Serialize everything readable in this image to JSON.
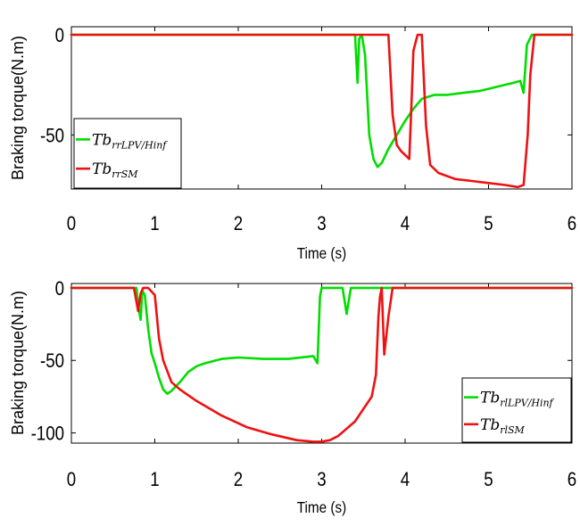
{
  "chart_data": [
    {
      "type": "line",
      "title": "",
      "xlabel": "Time (s)",
      "ylabel": "Braking torque(N.m)",
      "xlim": [
        0,
        6
      ],
      "ylim": [
        -77,
        4
      ],
      "xticks": [
        0,
        1,
        2,
        3,
        4,
        5,
        6
      ],
      "yticks": [
        0,
        -50
      ],
      "grid": false,
      "legend_position": "left",
      "series": [
        {
          "name": "Tb_rrLPV/Hinf",
          "name_main": "Tb",
          "name_sub": "rrLPV/Hinf",
          "color": "#00dd00",
          "x": [
            0,
            3.4,
            3.43,
            3.45,
            3.48,
            3.52,
            3.57,
            3.62,
            3.67,
            3.72,
            3.8,
            3.9,
            4.0,
            4.1,
            4.2,
            4.35,
            4.5,
            4.7,
            4.9,
            5.1,
            5.3,
            5.38,
            5.42,
            5.46,
            5.52,
            5.6,
            6
          ],
          "y": [
            0,
            0,
            -24,
            -2,
            0,
            -10,
            -50,
            -62,
            -66,
            -64,
            -57,
            -50,
            -43,
            -37,
            -32,
            -30,
            -30,
            -29,
            -28,
            -26,
            -24,
            -23,
            -29,
            -5,
            0,
            0,
            0
          ]
        },
        {
          "name": "Tb_rrSM",
          "name_main": "Tb",
          "name_sub": "rrSM",
          "color": "#ee1111",
          "x": [
            0,
            3.8,
            3.85,
            3.9,
            3.95,
            4.0,
            4.05,
            4.08,
            4.1,
            4.15,
            4.2,
            4.25,
            4.3,
            4.4,
            4.6,
            4.8,
            5.0,
            5.2,
            5.35,
            5.42,
            5.47,
            5.5,
            5.55,
            5.6,
            6
          ],
          "y": [
            0,
            0,
            -40,
            -55,
            -58,
            -60,
            -62,
            -30,
            -8,
            0,
            0,
            -45,
            -65,
            -69,
            -72,
            -73,
            -74,
            -75,
            -76,
            -75,
            -50,
            -20,
            0,
            0,
            0
          ]
        }
      ]
    },
    {
      "type": "line",
      "title": "",
      "xlabel": "Time (s)",
      "ylabel": "Braking torque(N.m)",
      "xlim": [
        0,
        6
      ],
      "ylim": [
        -107,
        3
      ],
      "xticks": [
        0,
        1,
        2,
        3,
        4,
        5,
        6
      ],
      "yticks": [
        0,
        -50,
        -100
      ],
      "grid": false,
      "legend_position": "right",
      "series": [
        {
          "name": "Tb_rlLPV/Hinf",
          "name_main": "Tb",
          "name_sub": "rlLPV/Hinf",
          "color": "#00dd00",
          "x": [
            0,
            0.78,
            0.8,
            0.83,
            0.85,
            0.88,
            0.92,
            0.96,
            1.0,
            1.05,
            1.1,
            1.15,
            1.2,
            1.3,
            1.4,
            1.5,
            1.6,
            1.8,
            2.0,
            2.3,
            2.6,
            2.9,
            2.95,
            2.98,
            3.0,
            3.05,
            3.25,
            3.3,
            3.35,
            3.4,
            6
          ],
          "y": [
            0,
            0,
            -12,
            -22,
            -2,
            -5,
            -28,
            -45,
            -52,
            -62,
            -70,
            -73,
            -71,
            -65,
            -58,
            -54,
            -52,
            -49,
            -48,
            -49,
            -49,
            -47,
            -52,
            -6,
            0,
            0,
            0,
            -18,
            0,
            0,
            0
          ]
        },
        {
          "name": "Tb_rlSM",
          "name_main": "Tb",
          "name_sub": "rlSM",
          "color": "#ee1111",
          "x": [
            0,
            0.75,
            0.8,
            0.83,
            0.86,
            0.92,
            1.0,
            1.05,
            1.1,
            1.2,
            1.3,
            1.5,
            1.8,
            2.1,
            2.4,
            2.7,
            2.9,
            3.0,
            3.1,
            3.2,
            3.4,
            3.6,
            3.65,
            3.68,
            3.7,
            3.72,
            3.75,
            3.8,
            3.85,
            3.9,
            6
          ],
          "y": [
            0,
            0,
            -16,
            -4,
            0,
            0,
            -5,
            -35,
            -50,
            -65,
            -70,
            -78,
            -88,
            -96,
            -101,
            -105,
            -106,
            -106,
            -105,
            -102,
            -92,
            -75,
            -60,
            -20,
            -6,
            0,
            -46,
            -20,
            0,
            0,
            0
          ]
        }
      ]
    }
  ]
}
